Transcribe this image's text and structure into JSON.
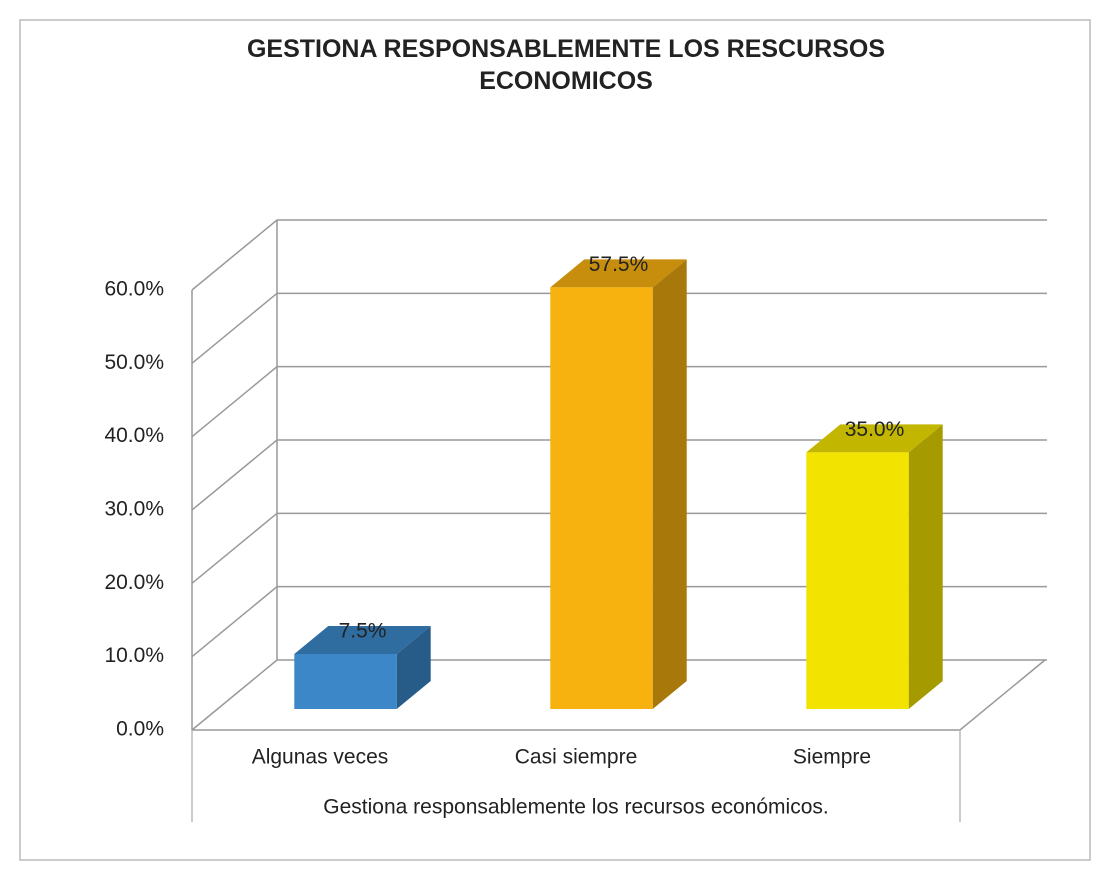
{
  "chart_data": {
    "type": "bar3d",
    "title": "GESTIONA RESPONSABLEMENTE LOS RESCURSOS ECONOMICOS",
    "x_label": "Gestiona responsablemente los recursos económicos.",
    "categories": [
      "Algunas veces",
      "Casi siempre",
      "Siempre"
    ],
    "values": [
      7.5,
      57.5,
      35.0
    ],
    "value_labels": [
      "7.5%",
      "57.5%",
      "35.0%"
    ],
    "colors": [
      "#3b87c8",
      "#f7b20f",
      "#f2e400"
    ],
    "ylim": [
      0,
      60
    ],
    "yticks": [
      {
        "value": 0,
        "label": "0.0%"
      },
      {
        "value": 10,
        "label": "10.0%"
      },
      {
        "value": 20,
        "label": "20.0%"
      },
      {
        "value": 30,
        "label": "30.0%"
      },
      {
        "value": 40,
        "label": "40.0%"
      },
      {
        "value": 50,
        "label": "50.0%"
      },
      {
        "value": 60,
        "label": "60.0%"
      }
    ],
    "grid": true
  }
}
